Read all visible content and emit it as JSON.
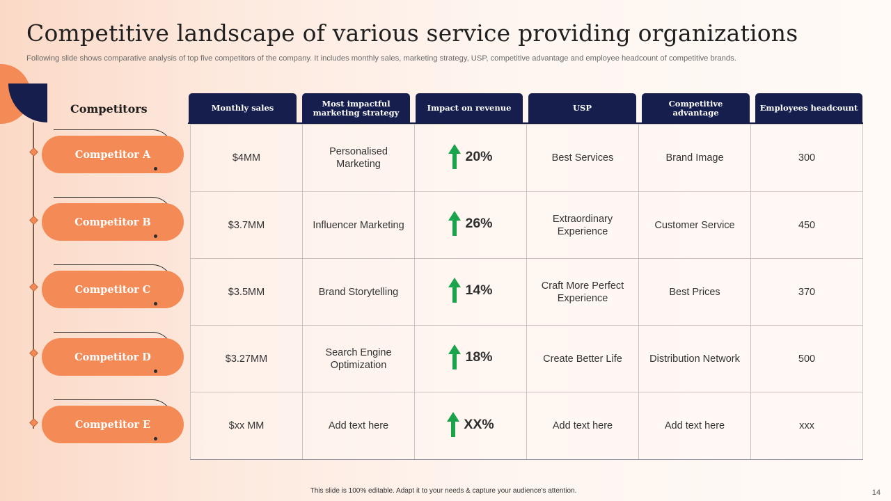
{
  "slide": {
    "title": "Competitive landscape of various service providing organizations",
    "subtitle": "Following slide shows comparative analysis of top five competitors of the company. It includes monthly sales, marketing strategy, USP, competitive advantage and employee headcount of competitive brands.",
    "footer": "This slide is 100% editable.  Adapt it to your needs & capture your audience's attention.",
    "page_number": "14"
  },
  "colors": {
    "accent_orange": "#f48a55",
    "navy": "#151e4c",
    "arrow_green": "#1aa34a"
  },
  "table": {
    "row_label_header": "Competitors",
    "columns": [
      "Monthly sales",
      "Most impactful marketing strategy",
      "Impact on revenue",
      "USP",
      "Competitive advantage",
      "Employees headcount"
    ],
    "rows": [
      {
        "name": "Competitor A",
        "monthly_sales": "$4MM",
        "strategy": "Personalised Marketing",
        "impact": "20%",
        "usp": "Best Services",
        "advantage": "Brand Image",
        "headcount": "300"
      },
      {
        "name": "Competitor B",
        "monthly_sales": "$3.7MM",
        "strategy": "Influencer Marketing",
        "impact": "26%",
        "usp": "Extraordinary Experience",
        "advantage": "Customer Service",
        "headcount": "450"
      },
      {
        "name": "Competitor C",
        "monthly_sales": "$3.5MM",
        "strategy": "Brand Storytelling",
        "impact": "14%",
        "usp": "Craft More Perfect Experience",
        "advantage": "Best Prices",
        "headcount": "370"
      },
      {
        "name": "Competitor D",
        "monthly_sales": "$3.27MM",
        "strategy": "Search Engine Optimization",
        "impact": "18%",
        "usp": "Create Better Life",
        "advantage": "Distribution Network",
        "headcount": "500"
      },
      {
        "name": "Competitor E",
        "monthly_sales": "$xx MM",
        "strategy": "Add text here",
        "impact": "XX%",
        "usp": "Add text here",
        "advantage": "Add text here",
        "headcount": "xxx"
      }
    ],
    "impact_icon": "up-arrow-icon"
  }
}
